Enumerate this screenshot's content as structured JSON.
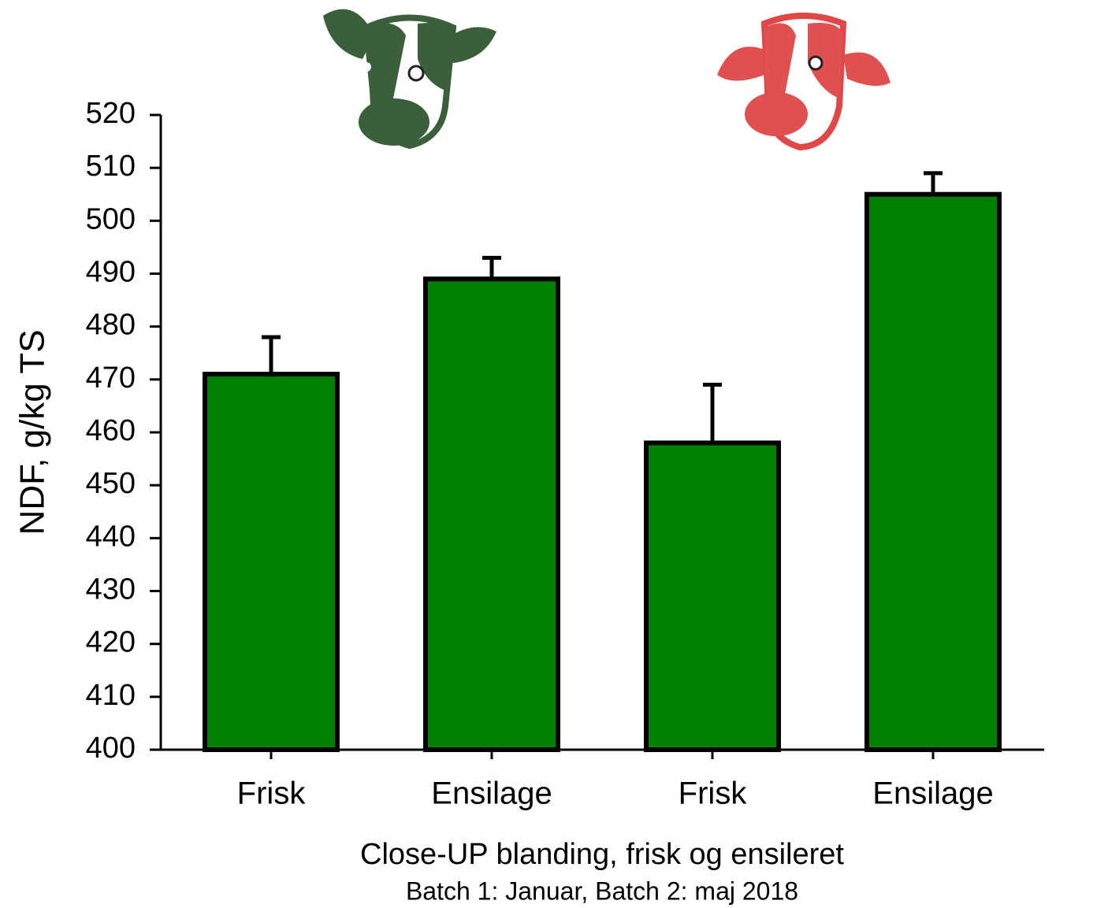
{
  "chart_data": {
    "type": "bar",
    "y_label": "NDF, g/kg TS",
    "x_label": "Close-UP blanding, frisk og ensileret",
    "subtitle": "Batch 1: Januar, Batch 2: maj 2018",
    "categories": [
      "Frisk",
      "Ensilage",
      "Frisk",
      "Ensilage"
    ],
    "values": [
      471,
      489,
      458,
      505
    ],
    "errors": [
      7,
      4,
      11,
      4
    ],
    "color": "#017f01",
    "ylim": [
      400,
      520
    ],
    "yticks": [
      400,
      410,
      420,
      430,
      440,
      450,
      460,
      470,
      480,
      490,
      500,
      510,
      520
    ]
  }
}
